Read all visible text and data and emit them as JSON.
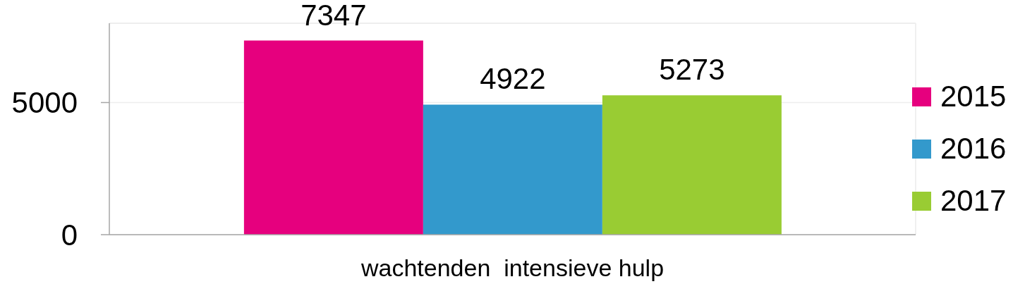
{
  "chart_data": {
    "type": "bar",
    "categories": [
      "wachtenden  intensieve hulp"
    ],
    "series": [
      {
        "name": "2015",
        "color": "#e6007e",
        "values": [
          7347
        ]
      },
      {
        "name": "2016",
        "color": "#3399cc",
        "values": [
          4922
        ]
      },
      {
        "name": "2017",
        "color": "#99cc33",
        "values": [
          5273
        ]
      }
    ],
    "ylim": [
      0,
      8000
    ],
    "yticks": [
      0,
      5000
    ],
    "grid": "y",
    "legend": "right",
    "data_labels": true
  }
}
